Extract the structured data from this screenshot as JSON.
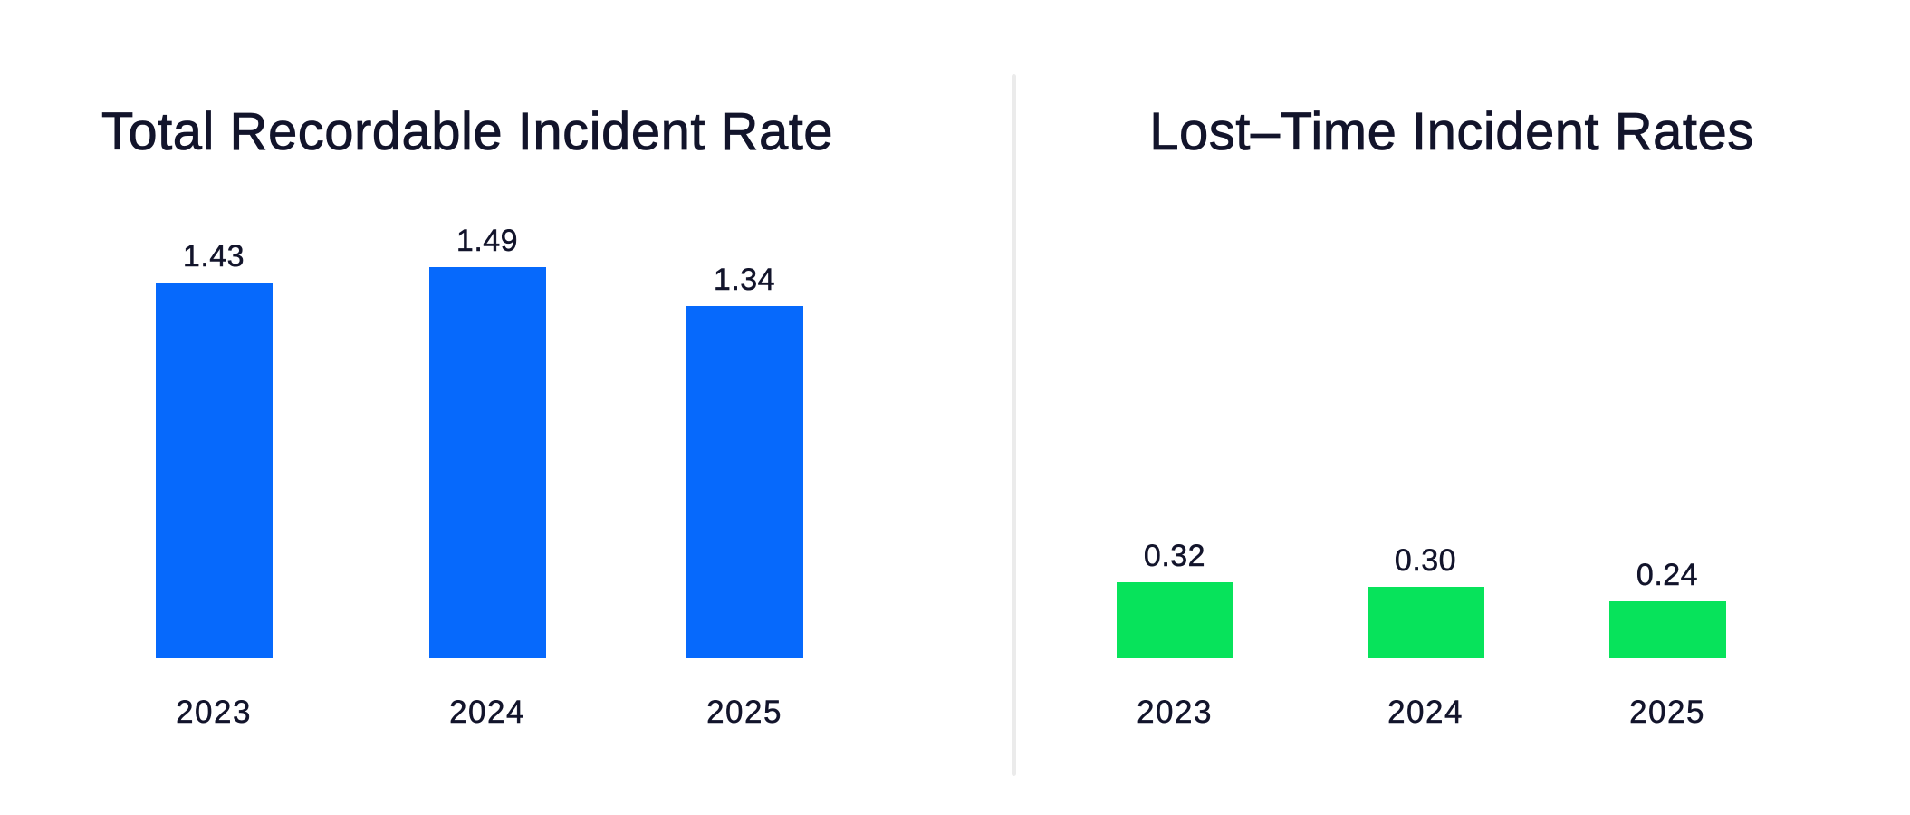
{
  "colors": {
    "background": "#ffffff",
    "text": "#12142b",
    "divider": "#ebebeb",
    "trir_bar": "#0669fc",
    "ltir_bar": "#07e35b"
  },
  "chart_data": [
    {
      "type": "bar",
      "title": "Total Recordable Incident Rate",
      "categories": [
        "2023",
        "2024",
        "2025"
      ],
      "values": [
        1.43,
        1.49,
        1.34
      ],
      "value_labels": [
        "1.43",
        "1.49",
        "1.34"
      ],
      "bar_color": "#0669fc",
      "xlabel": "",
      "ylabel": "",
      "ylim": [
        0,
        1.9
      ],
      "grid": false,
      "legend": false,
      "axes_shown": false,
      "data_labels_position": "above-bars"
    },
    {
      "type": "bar",
      "title": "Lost–Time Incident Rates",
      "categories": [
        "2023",
        "2024",
        "2025"
      ],
      "values": [
        0.32,
        0.3,
        0.24
      ],
      "value_labels": [
        "0.32",
        "0.30",
        "0.24"
      ],
      "bar_color": "#07e35b",
      "xlabel": "",
      "ylabel": "",
      "ylim": [
        0,
        2.1
      ],
      "grid": false,
      "legend": false,
      "axes_shown": false,
      "data_labels_position": "above-bars"
    }
  ]
}
